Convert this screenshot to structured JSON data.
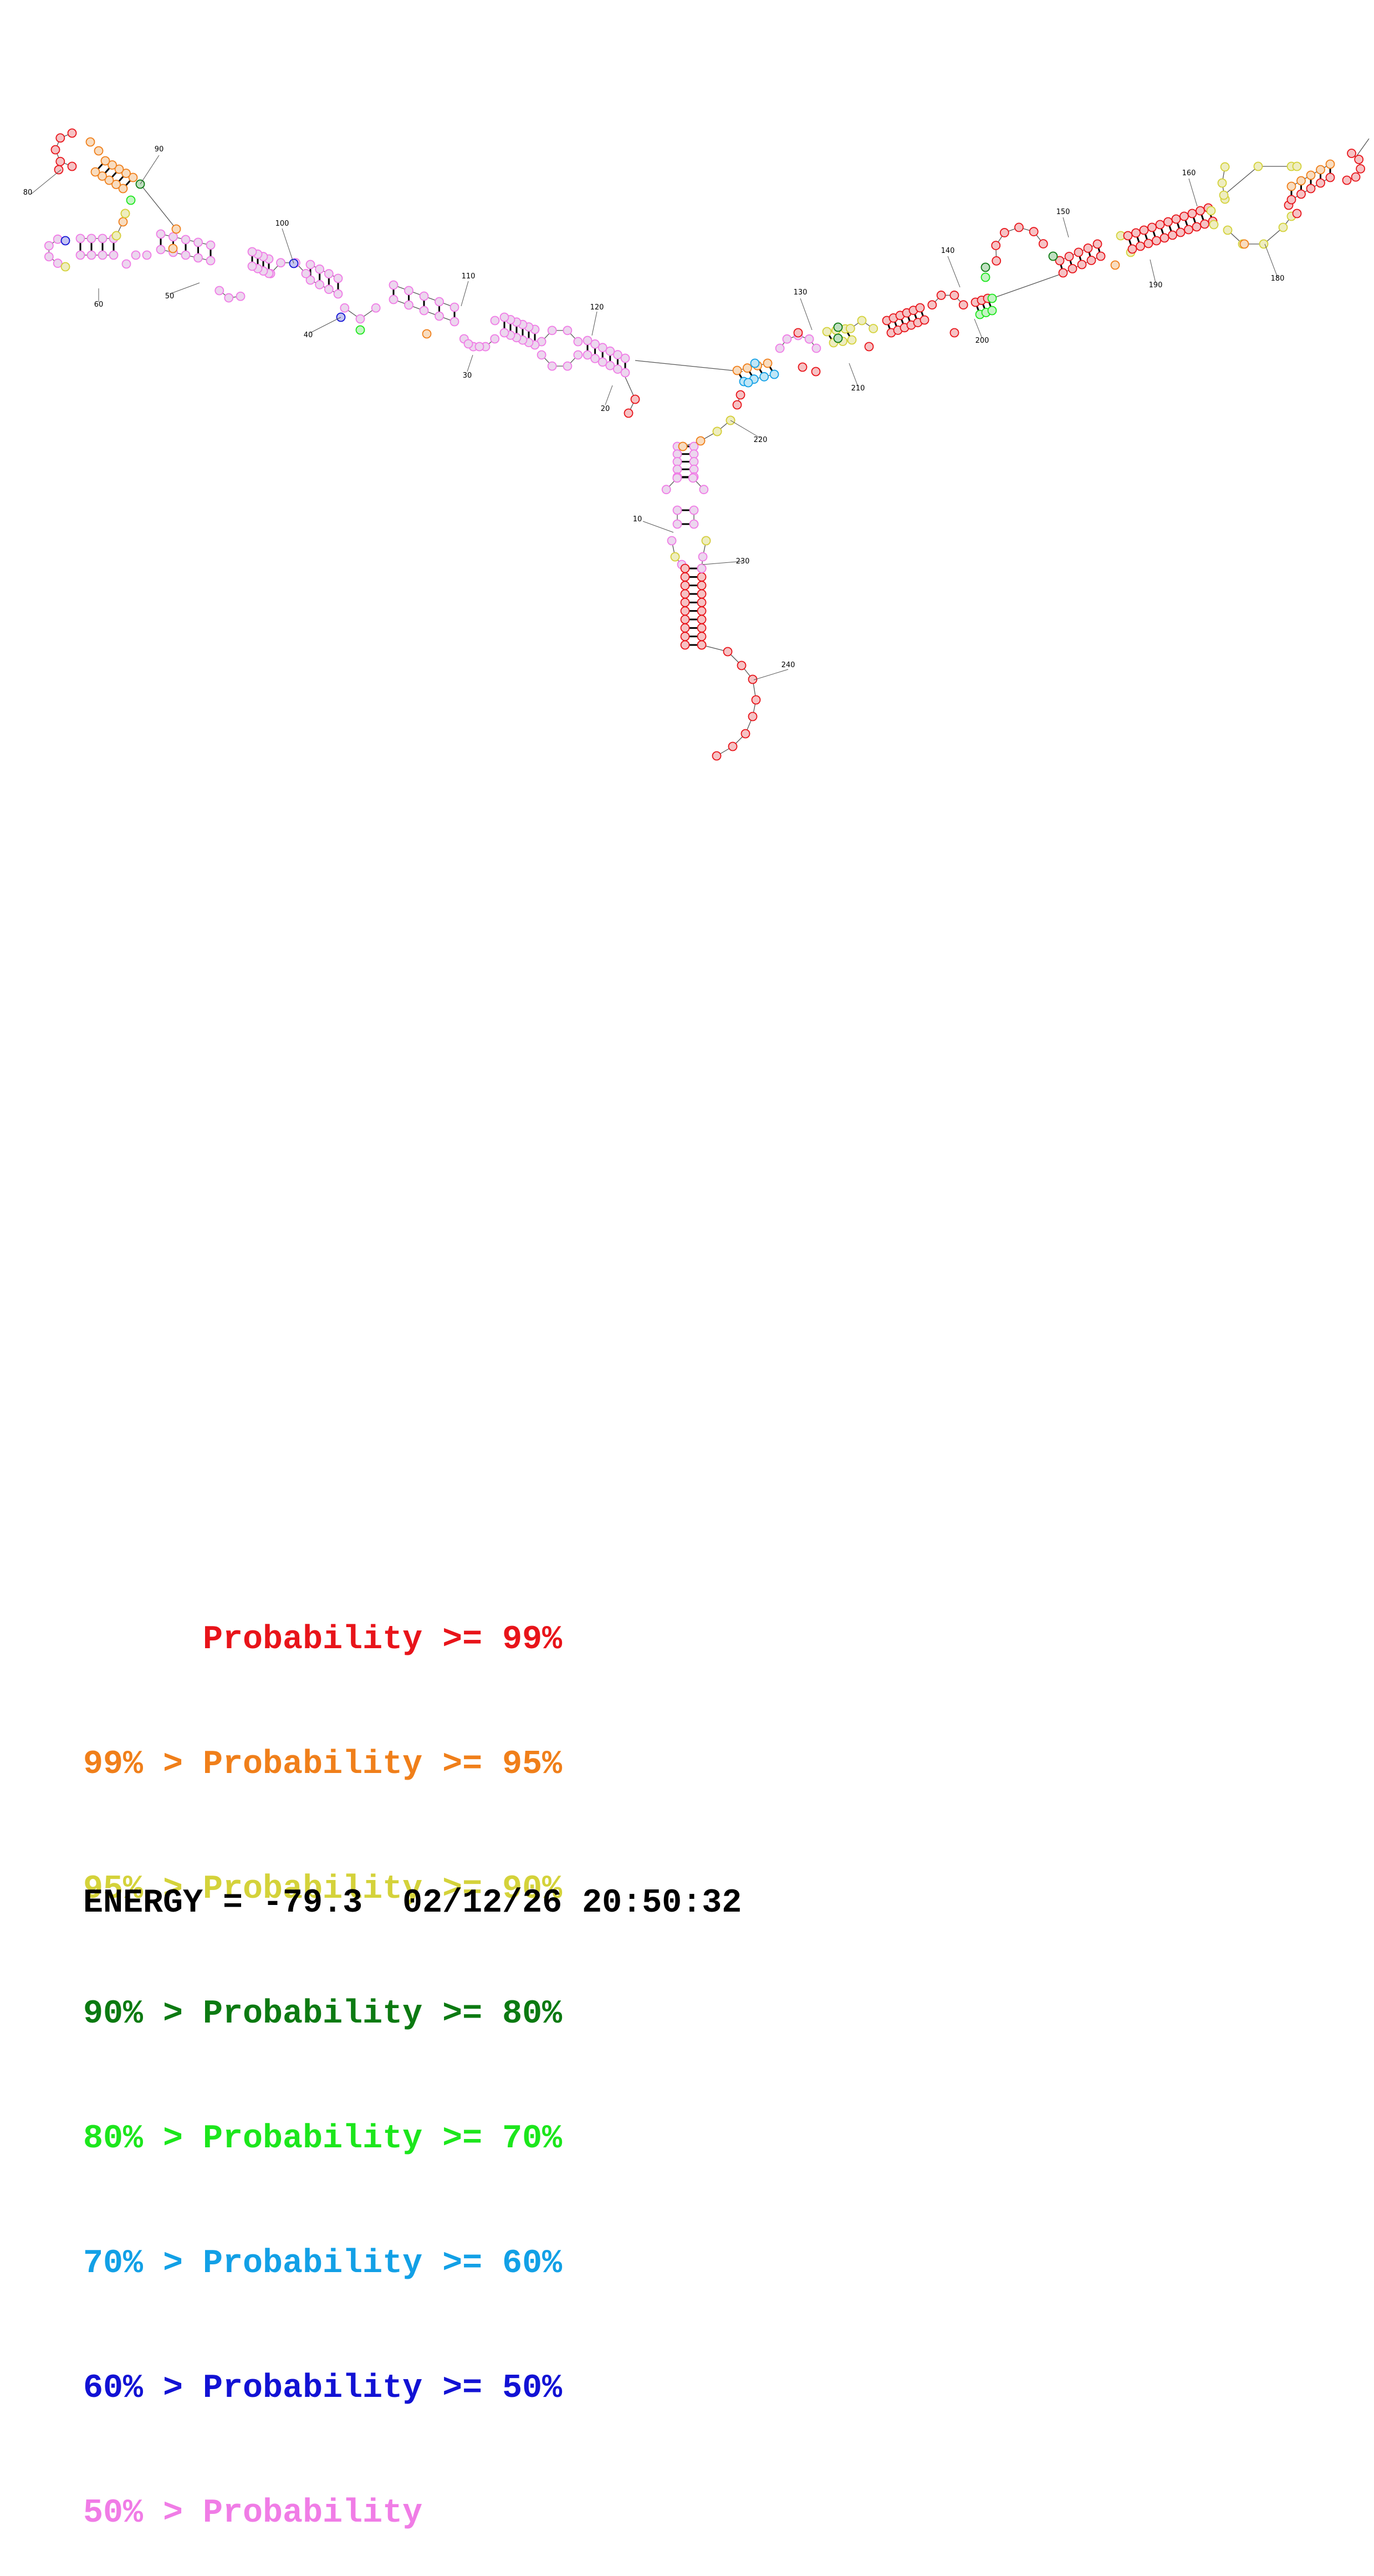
{
  "legend": {
    "rows": [
      {
        "label": "      Probability >= 99%",
        "color": "#e8141a"
      },
      {
        "label": "99% > Probability >= 95%",
        "color": "#f07f1a"
      },
      {
        "label": "95% > Probability >= 90%",
        "color": "#d4d23a"
      },
      {
        "label": "90% > Probability >= 80%",
        "color": "#0c7a12"
      },
      {
        "label": "80% > Probability >= 70%",
        "color": "#1ce61c"
      },
      {
        "label": "70% > Probability >= 60%",
        "color": "#12a0e6"
      },
      {
        "label": "60% > Probability >= 50%",
        "color": "#1212d4"
      },
      {
        "label": "50% > Probability",
        "color": "#f07ce6"
      }
    ]
  },
  "energy": {
    "label": "ENERGY = -79.3",
    "timestamp": "02/12/26 20:50:32"
  },
  "position_labels": [
    "10",
    "20",
    "30",
    "40",
    "50",
    "60",
    "80",
    "90",
    "100",
    "110",
    "120",
    "130",
    "140",
    "150",
    "160",
    "180",
    "190",
    "200",
    "210",
    "220",
    "230",
    "240"
  ]
}
